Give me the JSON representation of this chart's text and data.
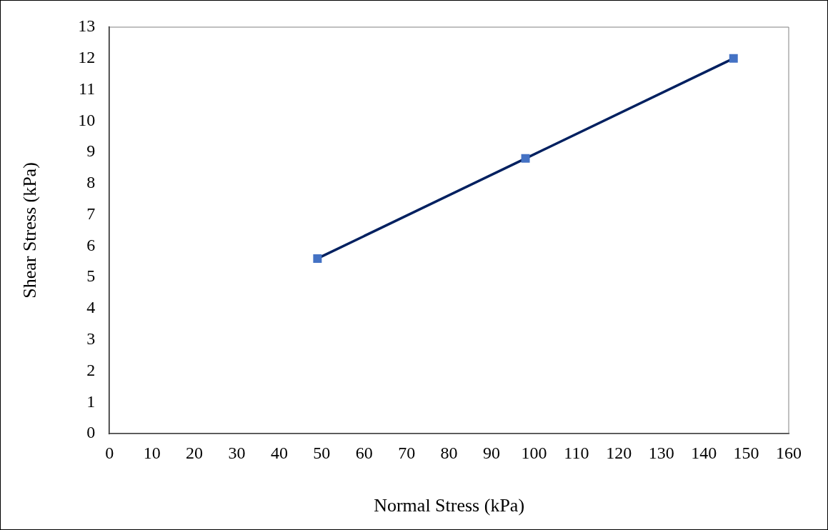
{
  "chart_data": {
    "type": "line",
    "xlabel": "Normal Stress (kPa)",
    "ylabel": "Shear Stress (kPa)",
    "x": [
      49,
      98,
      147
    ],
    "series": [
      {
        "color": "#002060",
        "colors": [
          "#4472c4",
          "#4472c4",
          "#4472c4"
        ],
        "values": [
          5.6,
          8.8,
          12.0
        ]
      }
    ],
    "xlim": [
      0,
      160
    ],
    "xticks": [
      0,
      10,
      20,
      30,
      40,
      50,
      60,
      70,
      80,
      90,
      100,
      110,
      120,
      130,
      140,
      150,
      160
    ],
    "ylim": [
      0,
      13
    ],
    "yticks": [
      0,
      1,
      2,
      3,
      4,
      5,
      6,
      7,
      8,
      9,
      10,
      11,
      12,
      13
    ],
    "grid": false,
    "legend": false,
    "marker": "square",
    "line_style": "solid"
  }
}
